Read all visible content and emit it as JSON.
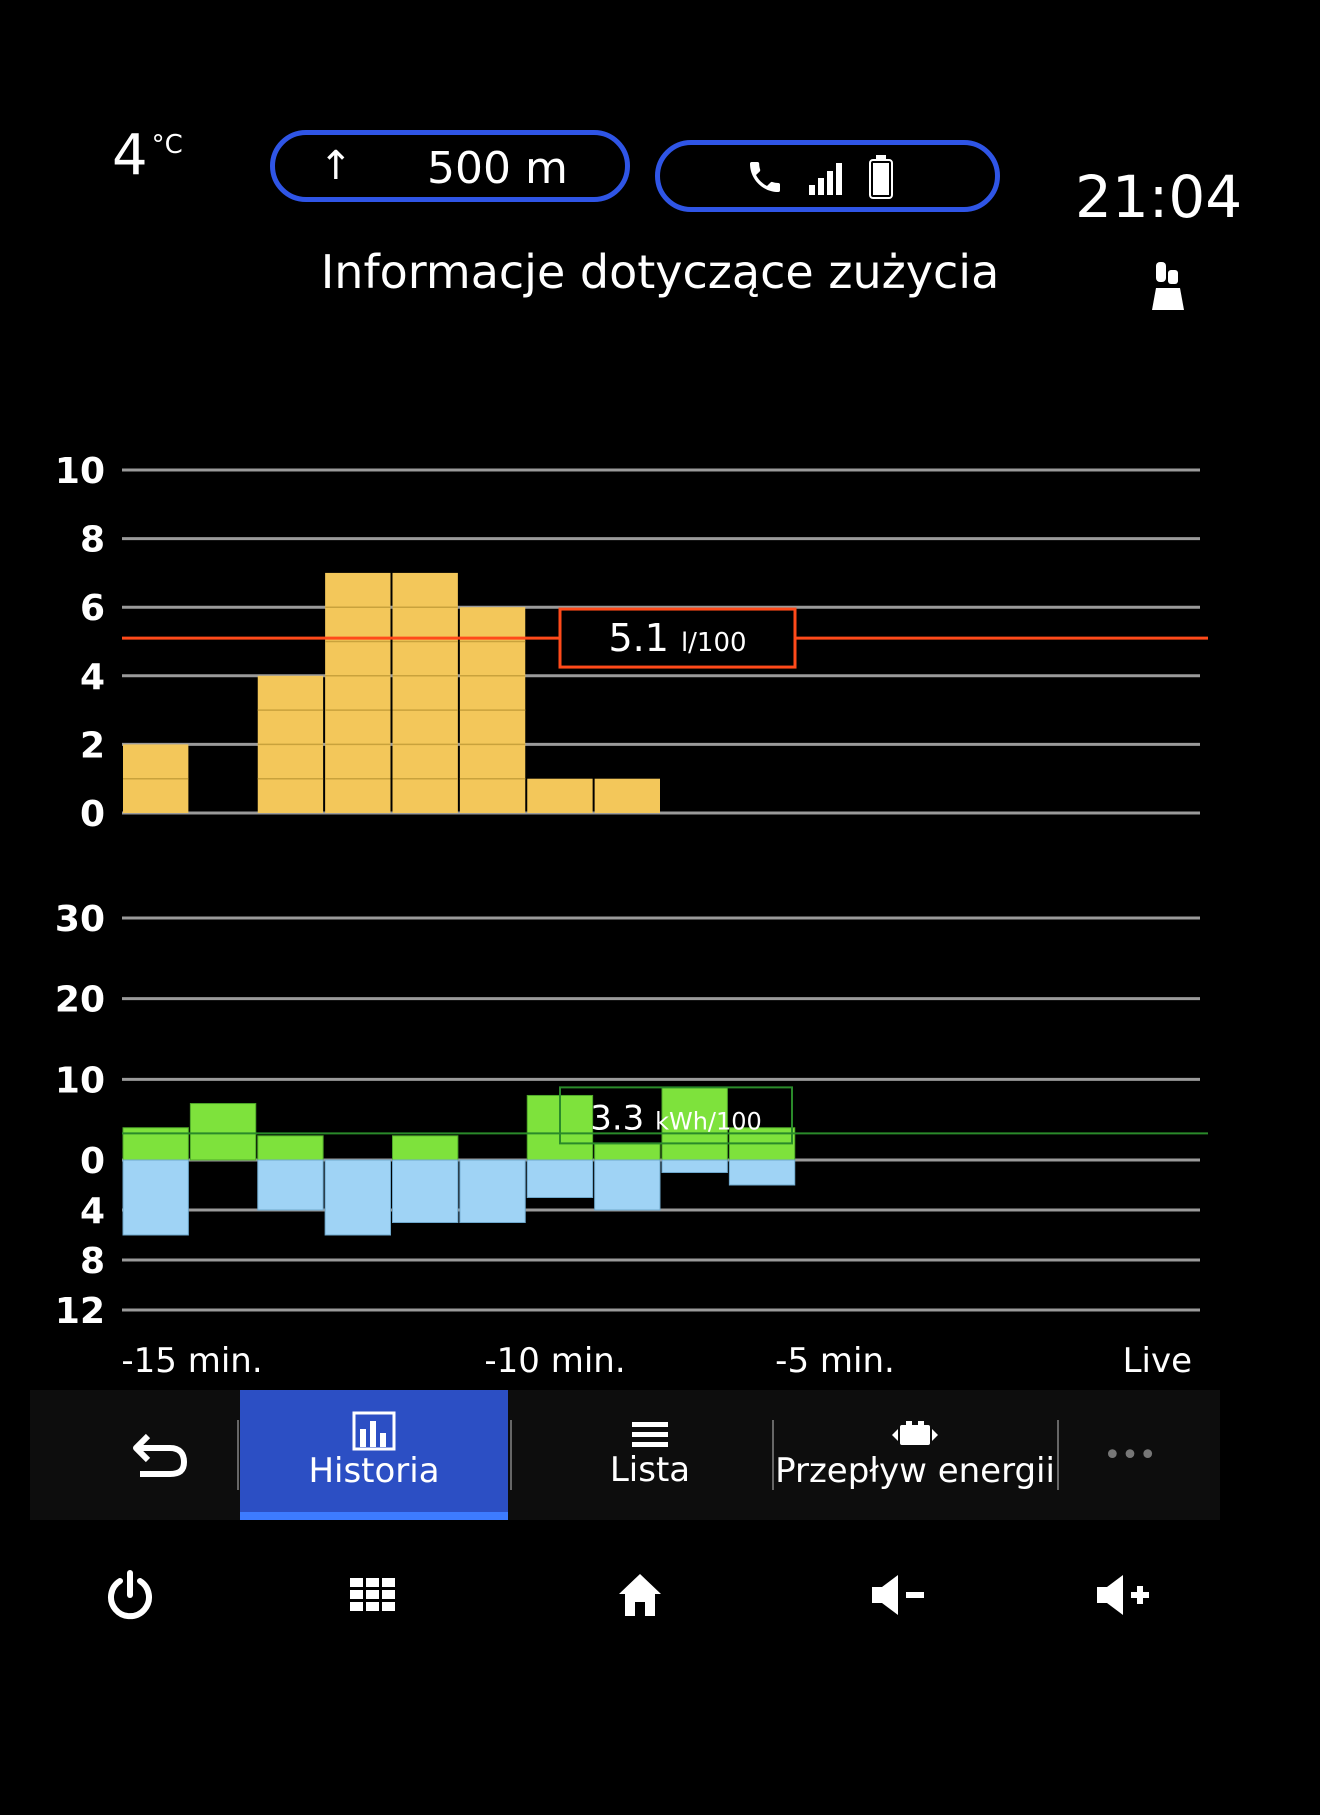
{
  "status": {
    "temperature": "4",
    "temperature_unit": "°C",
    "nav_distance": "500 m",
    "clock": "21:04"
  },
  "title": "Informacje dotyczące zużycia",
  "colors": {
    "fuel_bar": "#f3c75a",
    "electric_positive": "#7ee23c",
    "electric_negative": "#9fd3f5",
    "fuel_average": "#ff4a1a",
    "electric_average": "#2a8a2a",
    "tab_active": "#2c4fc4",
    "pill_border": "#2f55e6"
  },
  "chart_data": [
    {
      "type": "bar",
      "title": "",
      "x_labels": [
        "-15 min.",
        "-10 min.",
        "-5 min.",
        "Live"
      ],
      "x_range_minutes": [
        -16,
        0
      ],
      "y_ticks": [
        "10",
        "8",
        "6",
        "4",
        "2",
        "0"
      ],
      "ylim": [
        0,
        10
      ],
      "average_value": 5.1,
      "average_label": "5.1",
      "average_unit": "l/100",
      "bars": [
        {
          "x": -15.5,
          "value": 2
        },
        {
          "x": -14.5,
          "value": 0
        },
        {
          "x": -13.5,
          "value": 4
        },
        {
          "x": -12.5,
          "value": 7
        },
        {
          "x": -11.5,
          "value": 7
        },
        {
          "x": -10.5,
          "value": 6
        },
        {
          "x": -9.5,
          "value": 1
        },
        {
          "x": -8.5,
          "value": 1
        }
      ]
    },
    {
      "type": "bar",
      "title": "",
      "y_ticks_positive": [
        "30",
        "20",
        "10",
        "0"
      ],
      "y_ticks_negative": [
        "4",
        "8",
        "12"
      ],
      "ylim": [
        -12,
        30
      ],
      "average_value": 3.3,
      "average_label": "3.3",
      "average_unit": "kWh/100",
      "bars": [
        {
          "x": -15.5,
          "consumption": 4,
          "regeneration": 6
        },
        {
          "x": -14.5,
          "consumption": 7,
          "regeneration": 0
        },
        {
          "x": -13.5,
          "consumption": 3,
          "regeneration": 4
        },
        {
          "x": -12.5,
          "consumption": 0,
          "regeneration": 6
        },
        {
          "x": -11.5,
          "consumption": 3,
          "regeneration": 5
        },
        {
          "x": -10.5,
          "consumption": 0,
          "regeneration": 5
        },
        {
          "x": -9.5,
          "consumption": 8,
          "regeneration": 3
        },
        {
          "x": -8.5,
          "consumption": 2,
          "regeneration": 4
        },
        {
          "x": -7.5,
          "consumption": 9,
          "regeneration": 1
        },
        {
          "x": -6.5,
          "consumption": 4,
          "regeneration": 2
        }
      ]
    }
  ],
  "tabs": {
    "historia": "Historia",
    "lista": "Lista",
    "energia": "Przepływ energii",
    "more": "•••"
  },
  "icons": {
    "nav": "arrow-up-icon",
    "status": [
      "phone-icon",
      "signal-icon",
      "battery-icon"
    ],
    "profile": "driver-profile-icon",
    "system": [
      "power-icon",
      "apps-grid-icon",
      "home-icon",
      "volume-down-icon",
      "volume-up-icon"
    ]
  }
}
